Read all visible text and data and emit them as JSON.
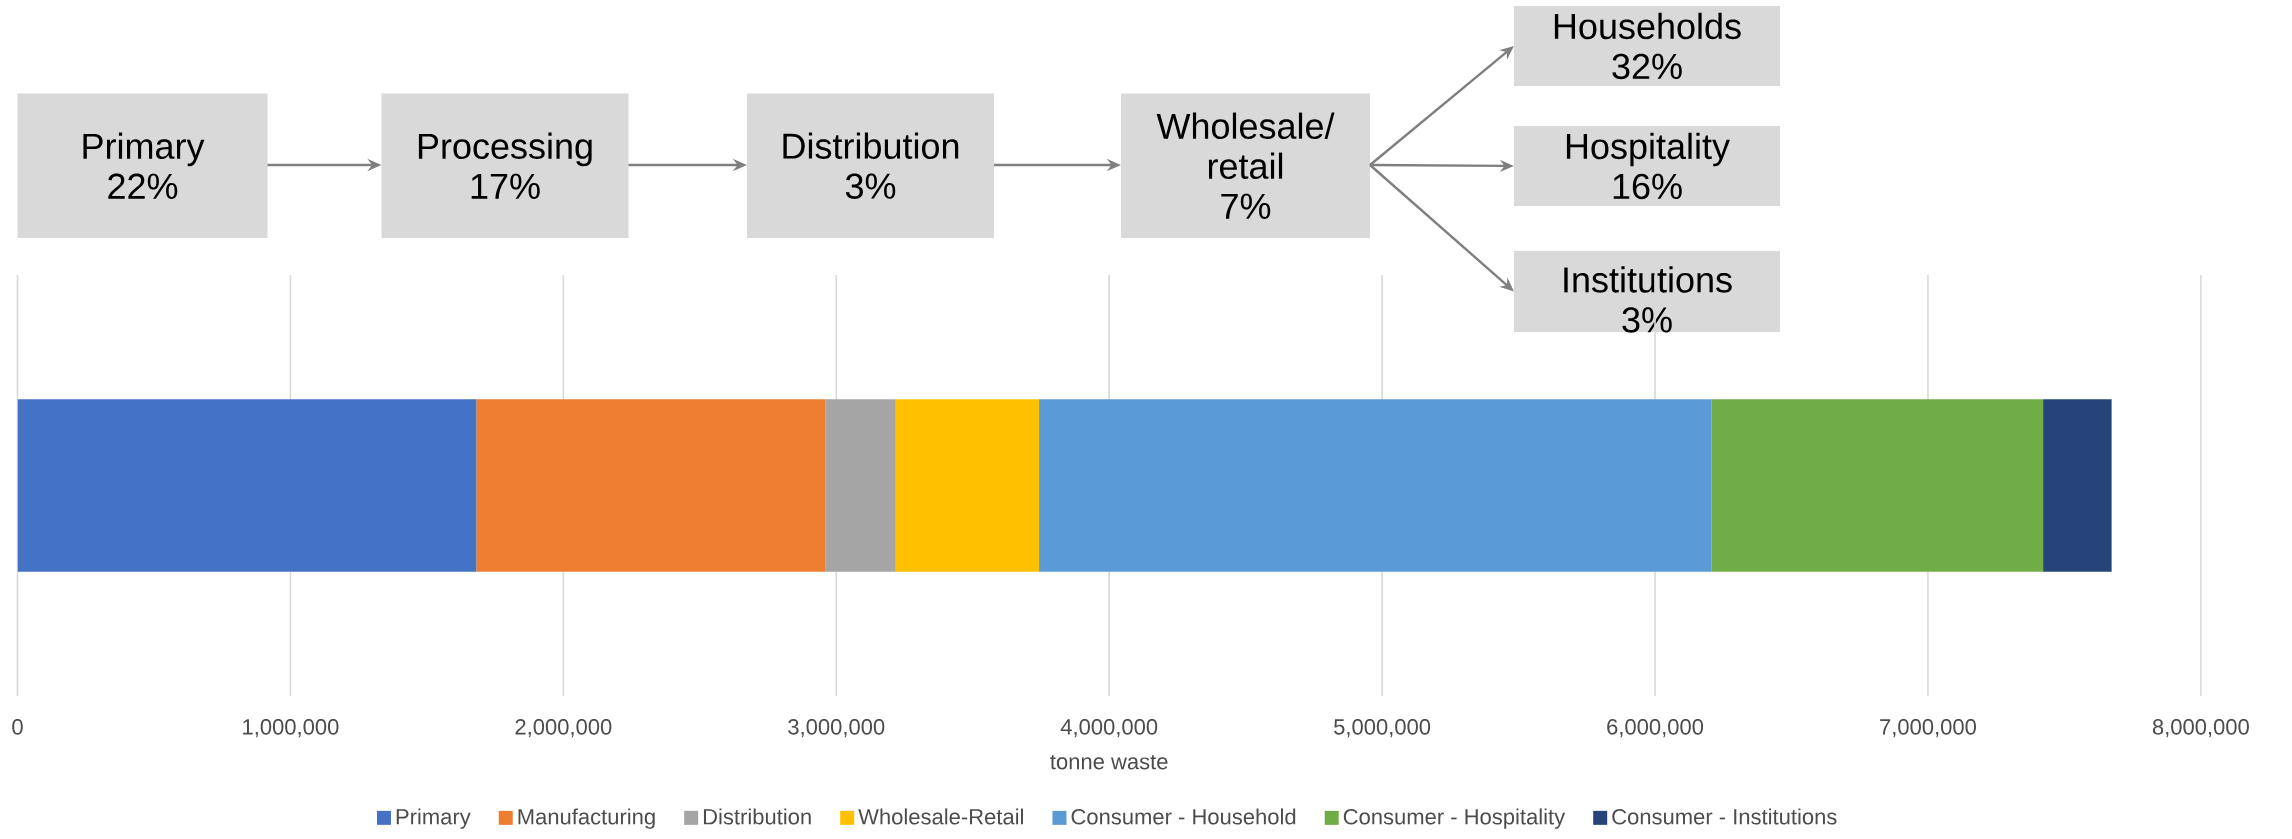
{
  "chart_data": {
    "type": "bar",
    "orientation": "horizontal",
    "stacked": true,
    "categories": [
      null
    ],
    "xlabel": "tonne waste",
    "xlim": [
      0,
      8000000
    ],
    "xticks": [
      0,
      {
        "value": 1000000,
        "label": "1,000,000"
      },
      {
        "value": 2000000,
        "label": "2,000,000"
      },
      {
        "value": 3000000,
        "label": "3,000,000"
      },
      {
        "value": 4000000,
        "label": "4,000,000"
      },
      {
        "value": 5000000,
        "label": "5,000,000"
      },
      {
        "value": 6000000,
        "label": "6,000,000"
      },
      {
        "value": 7000000,
        "label": "7,000,000"
      },
      {
        "value": 8000000,
        "label": "8,000,000"
      }
    ],
    "grid": "x",
    "legend": "bottom",
    "series": [
      {
        "name": "Primary",
        "color": "#4472c4",
        "values": [
          1681000
        ]
      },
      {
        "name": "Manufacturing",
        "color": "#ed7d31",
        "values": [
          1280000
        ]
      },
      {
        "name": "Distribution",
        "color": "#a5a5a5",
        "values": [
          257000
        ]
      },
      {
        "name": "Wholesale-Retail",
        "color": "#ffc000",
        "values": [
          525000
        ]
      },
      {
        "name": "Consumer - Household",
        "color": "#5b9bd5",
        "values": [
          2463000
        ]
      },
      {
        "name": "Consumer - Hospitality",
        "color": "#70ad47",
        "values": [
          1216000
        ]
      },
      {
        "name": "Consumer - Institutions",
        "color": "#264478",
        "values": [
          251000
        ]
      }
    ],
    "annotations": [
      "Primary",
      "22%",
      "Processing",
      "17%",
      "Distribution",
      "3%",
      "Wholesale/ retail",
      "7%",
      "Households",
      "32%",
      "Hospitality",
      "16%",
      "Institutions",
      "3%"
    ]
  }
}
